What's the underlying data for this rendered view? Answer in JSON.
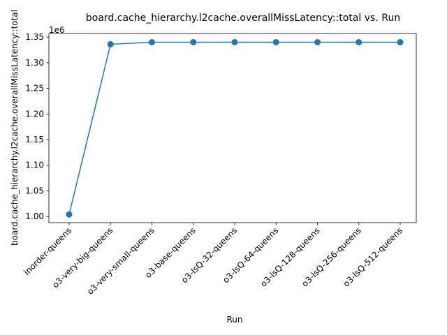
{
  "chart_data": {
    "type": "line",
    "title": "board.cache_hierarchy.l2cache.overallMissLatency::total vs. Run",
    "xlabel": "Run",
    "ylabel": "board.cache_hierarchy.l2cache.overallMissLatency::total",
    "offset_label": "1e6",
    "categories": [
      "inorder-queens",
      "o3-very-big-queens",
      "o3-very-small-queens",
      "o3-base-queens",
      "o3-lsQ-32-queens",
      "o3-lsQ-64-queens",
      "o3-lsQ-128-queens",
      "o3-lsQ-256-queens",
      "o3-lsQ-512-queens"
    ],
    "series": [
      {
        "values": [
          1004000,
          1336000,
          1340000,
          1340000,
          1340000,
          1340000,
          1340000,
          1340000,
          1340000
        ],
        "color": "#1f77b4",
        "marker": "circle"
      }
    ],
    "ylim": [
      988000,
      1357000
    ],
    "yticks": [
      1000000,
      1050000,
      1100000,
      1150000,
      1200000,
      1250000,
      1300000,
      1350000
    ],
    "ytick_labels": [
      "1.00",
      "1.05",
      "1.10",
      "1.15",
      "1.20",
      "1.25",
      "1.30",
      "1.35"
    ],
    "grid": false,
    "legend": "none"
  }
}
